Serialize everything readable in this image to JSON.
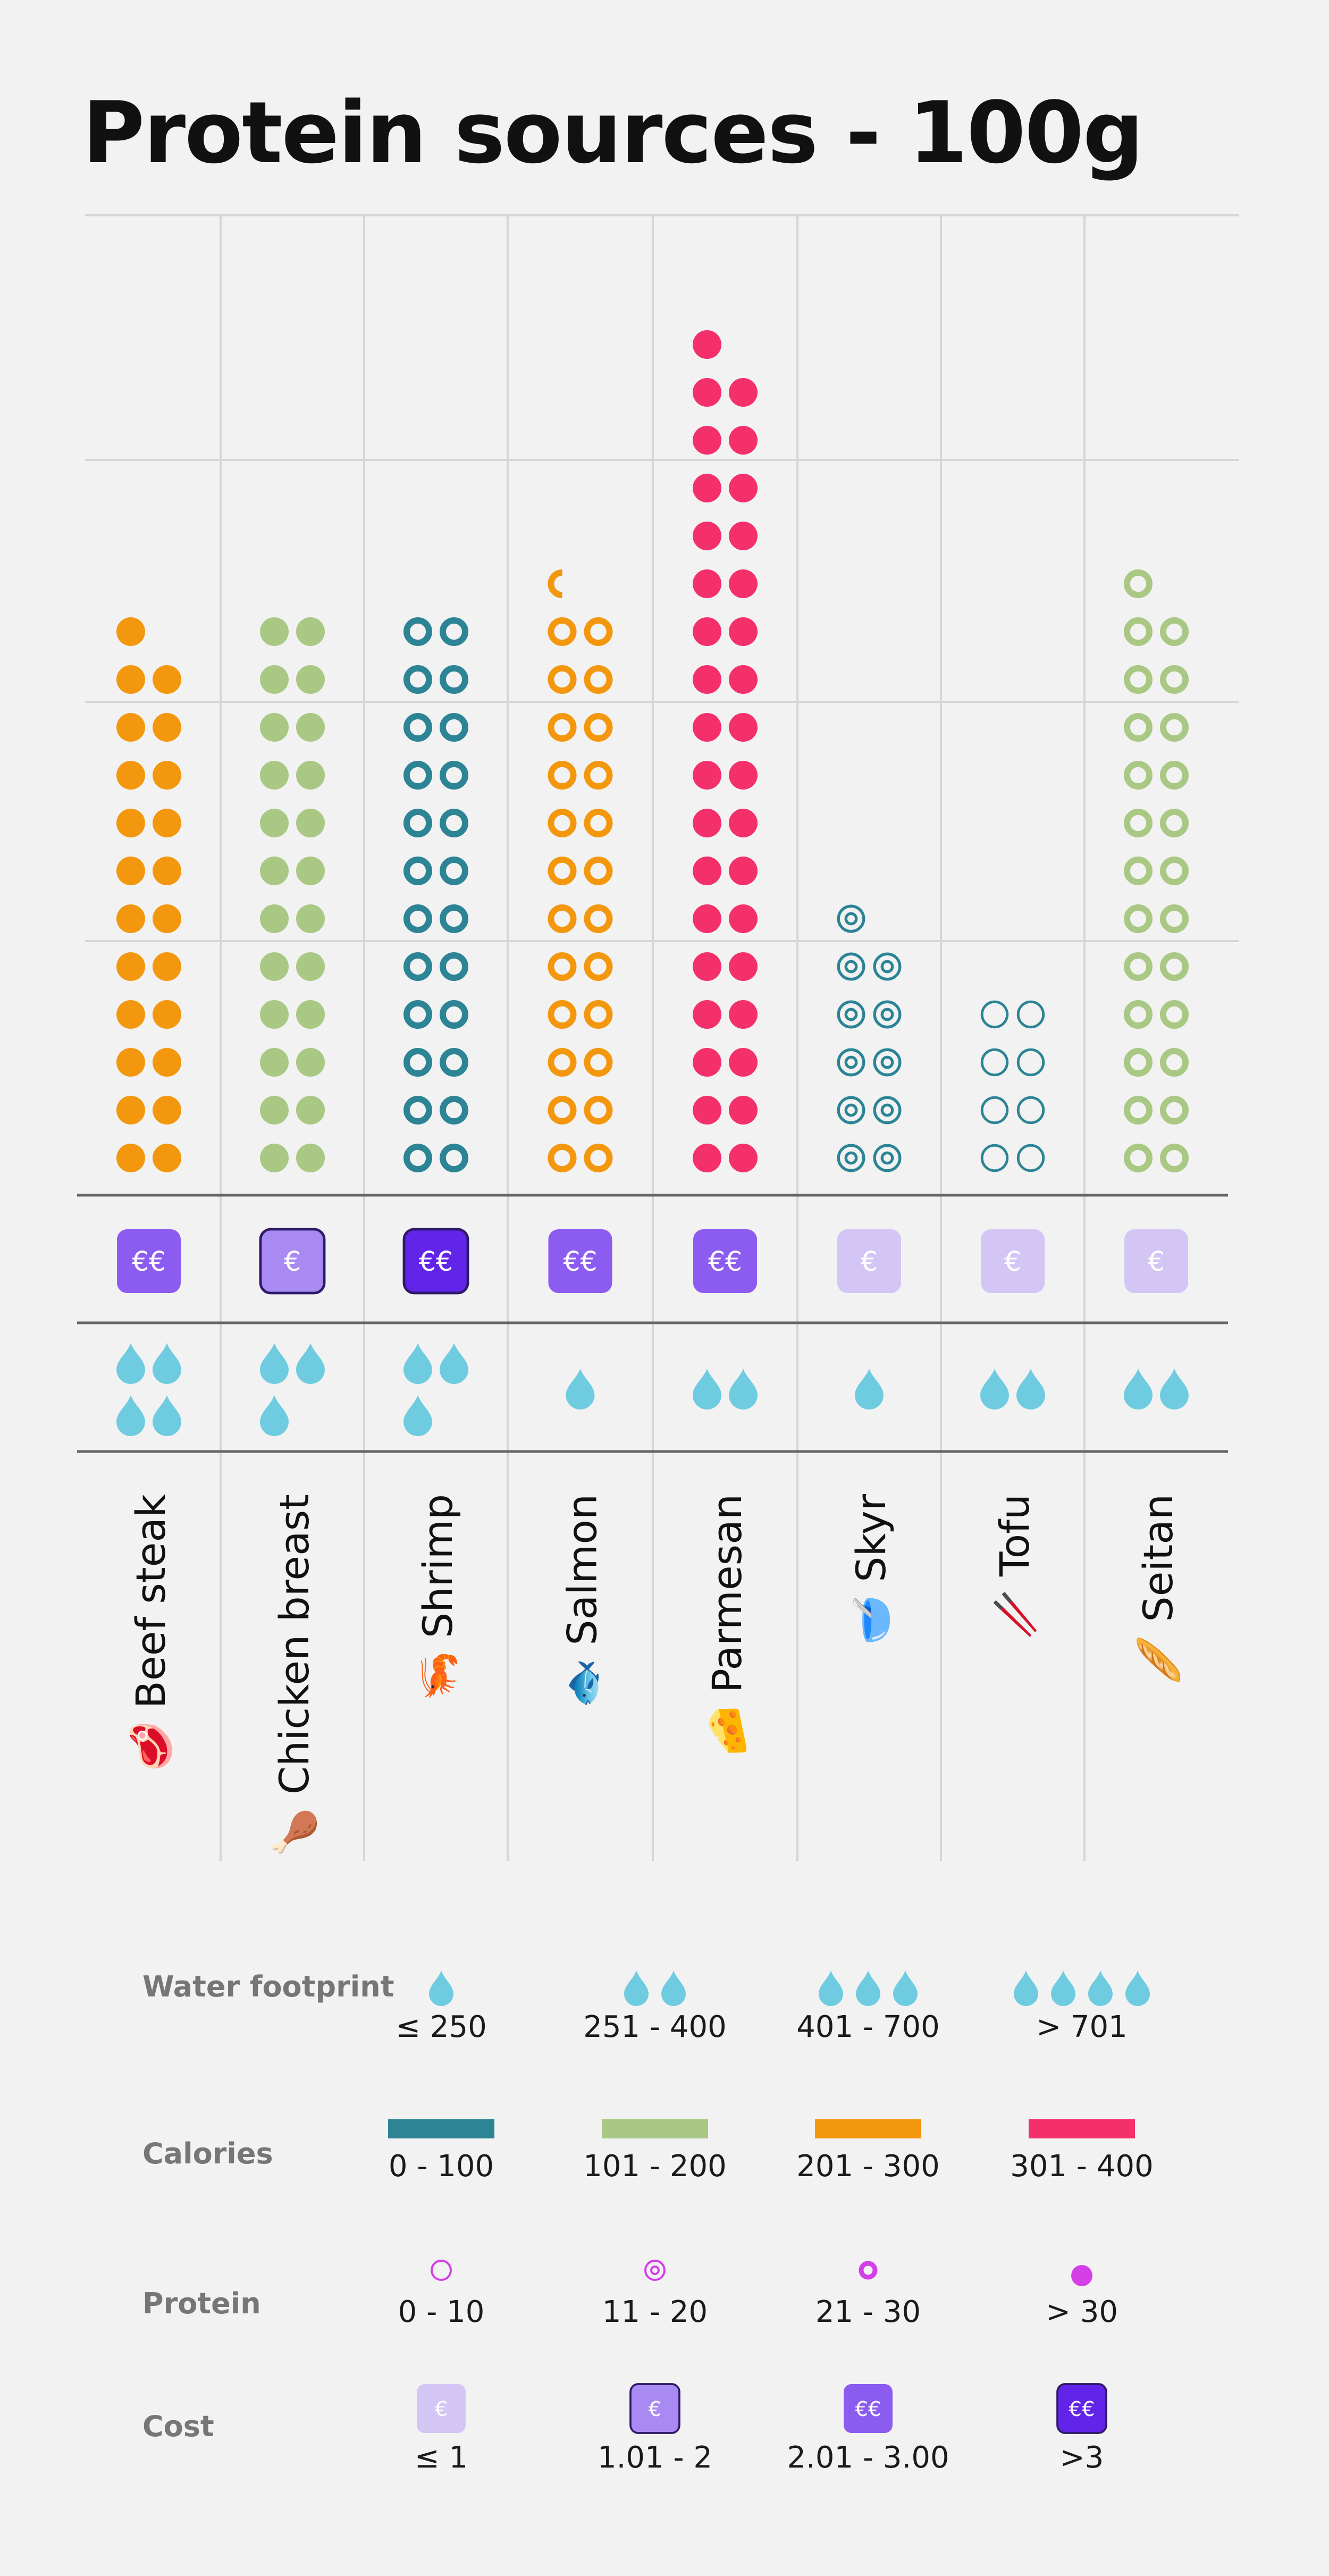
{
  "title": "Protein sources - 100g",
  "colors": {
    "cal_0_100": "#2c8495",
    "cal_101_200": "#a9c884",
    "cal_201_300": "#f3980e",
    "cal_301_400": "#f4306b",
    "water": "#6fcce0",
    "protein_legend": "#d43fe8",
    "cost_1": "#d3c6f5",
    "cost_2": "#a98af2",
    "cost_3": "#8c5cf0",
    "cost_4": "#6224e9",
    "grid": "#d6d6d6",
    "separator": "#666666"
  },
  "chart_data": {
    "type": "pictograph",
    "title": "Protein sources - 100g",
    "grid": true,
    "categories": [
      "Beef steak",
      "Chicken breast",
      "Shrimp",
      "Salmon",
      "Parmesan",
      "Skyr",
      "Tofu",
      "Seitan"
    ],
    "foods": [
      {
        "name": "Beef steak",
        "emoji": "🥩",
        "icons": 23,
        "calories_class": "201 - 300",
        "protein_class": "> 30",
        "cost": "€€",
        "cost_class": "2.01 - 3.00",
        "water_drops": 4
      },
      {
        "name": "Chicken breast",
        "emoji": "🍗",
        "icons": 24,
        "calories_class": "101 - 200",
        "protein_class": "> 30",
        "cost": "€",
        "cost_class": "1.01 - 2",
        "water_drops": 3
      },
      {
        "name": "Shrimp",
        "emoji": "🦐",
        "icons": 24,
        "calories_class": "0 - 100",
        "protein_class": "21 - 30",
        "cost": "€€",
        "cost_class": ">3",
        "water_drops": 3
      },
      {
        "name": "Salmon",
        "emoji": "🐟",
        "icons": 24.5,
        "calories_class": "201 - 300",
        "protein_class": "21 - 30",
        "cost": "€€",
        "cost_class": "2.01 - 3.00",
        "water_drops": 1
      },
      {
        "name": "Parmesan",
        "emoji": "🧀",
        "icons": 35,
        "calories_class": "301 - 400",
        "protein_class": "> 30",
        "cost": "€€",
        "cost_class": "2.01 - 3.00",
        "water_drops": 2
      },
      {
        "name": "Skyr",
        "emoji": "🥣",
        "icons": 11,
        "calories_class": "0 - 100",
        "protein_class": "11 - 20",
        "cost": "€",
        "cost_class": "≤ 1",
        "water_drops": 1
      },
      {
        "name": "Tofu",
        "emoji": "🥢",
        "icons": 8,
        "calories_class": "0 - 100",
        "protein_class": "0 - 10",
        "cost": "€",
        "cost_class": "≤ 1",
        "water_drops": 2
      },
      {
        "name": "Seitan",
        "emoji": "🥖",
        "icons": 25,
        "calories_class": "101 - 200",
        "protein_class": "21 - 30",
        "cost": "€",
        "cost_class": "≤ 1",
        "water_drops": 2
      }
    ]
  },
  "legend": {
    "water": {
      "heading": "Water footprint",
      "items": [
        {
          "label": "≤ 250",
          "drops": 1
        },
        {
          "label": "251 - 400",
          "drops": 2
        },
        {
          "label": "401 - 700",
          "drops": 3
        },
        {
          "label": "> 701",
          "drops": 4
        }
      ]
    },
    "calories": {
      "heading": "Calories",
      "items": [
        {
          "label": "0 - 100",
          "color_key": "cal_0_100"
        },
        {
          "label": "101 - 200",
          "color_key": "cal_101_200"
        },
        {
          "label": "201 - 300",
          "color_key": "cal_201_300"
        },
        {
          "label": "301 - 400",
          "color_key": "cal_301_400"
        }
      ]
    },
    "protein": {
      "heading": "Protein",
      "items": [
        {
          "label": "0 - 10",
          "style": "ring"
        },
        {
          "label": "11 - 20",
          "style": "target"
        },
        {
          "label": "21 - 30",
          "style": "thick-ring"
        },
        {
          "label": "> 30",
          "style": "solid"
        }
      ]
    },
    "cost": {
      "heading": "Cost",
      "items": [
        {
          "label": "≤ 1",
          "symbol": "€",
          "level": 1
        },
        {
          "label": "1.01 - 2",
          "symbol": "€",
          "level": 2
        },
        {
          "label": "2.01 - 3.00",
          "symbol": "€€",
          "level": 3
        },
        {
          "label": ">3",
          "symbol": "€€",
          "level": 4
        }
      ]
    }
  }
}
